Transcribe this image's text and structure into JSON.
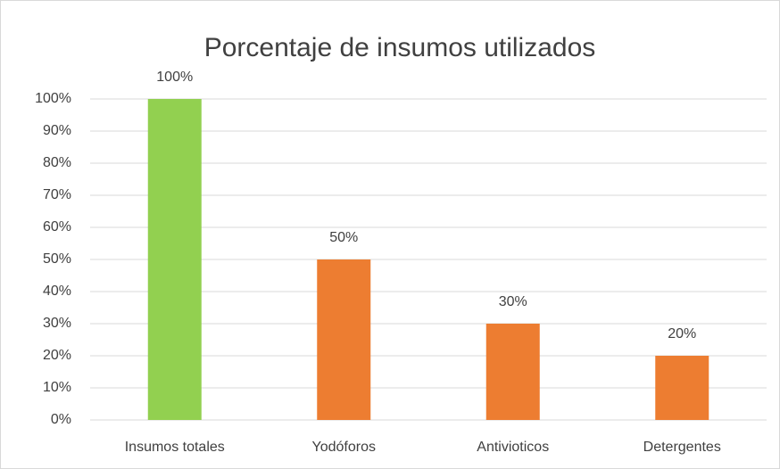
{
  "chart_data": {
    "type": "bar",
    "title": "Porcentaje de insumos utilizados",
    "categories": [
      "Insumos totales",
      "Yodóforos",
      "Antivioticos",
      "Detergentes"
    ],
    "values": [
      100,
      50,
      30,
      20
    ],
    "value_labels": [
      "100%",
      "50%",
      "30%",
      "20%"
    ],
    "colors": [
      "#92d050",
      "#ed7d31",
      "#ed7d31",
      "#ed7d31"
    ],
    "ylim": [
      0,
      100
    ],
    "yticks": [
      {
        "value": 0,
        "label": "0%"
      },
      {
        "value": 10,
        "label": "10%"
      },
      {
        "value": 20,
        "label": "20%"
      },
      {
        "value": 30,
        "label": "30%"
      },
      {
        "value": 40,
        "label": "40%"
      },
      {
        "value": 50,
        "label": "50%"
      },
      {
        "value": 60,
        "label": "60%"
      },
      {
        "value": 70,
        "label": "70%"
      },
      {
        "value": 80,
        "label": "80%"
      },
      {
        "value": 90,
        "label": "90%"
      },
      {
        "value": 100,
        "label": "100%"
      }
    ],
    "grid": true
  }
}
